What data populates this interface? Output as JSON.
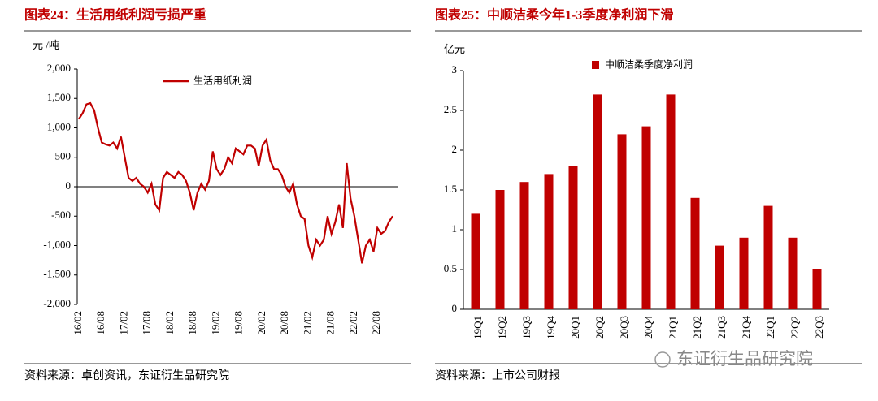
{
  "chart_data": [
    {
      "type": "line",
      "title": "图表24：生活用纸利润亏损严重",
      "y_label": "元 /吨",
      "source": "资料来源：卓创资讯，东证衍生品研究院",
      "categories": [
        "16/02",
        null,
        null,
        null,
        null,
        null,
        "16/08",
        null,
        null,
        null,
        null,
        null,
        "17/02",
        null,
        null,
        null,
        null,
        null,
        "17/08",
        null,
        null,
        null,
        null,
        null,
        "18/02",
        null,
        null,
        null,
        null,
        null,
        "18/08",
        null,
        null,
        null,
        null,
        null,
        "19/02",
        null,
        null,
        null,
        null,
        null,
        "19/08",
        null,
        null,
        null,
        null,
        null,
        "20/02",
        null,
        null,
        null,
        null,
        null,
        "20/08",
        null,
        null,
        null,
        null,
        null,
        "21/02",
        null,
        null,
        null,
        null,
        null,
        "21/08",
        null,
        null,
        null,
        null,
        null,
        "22/02",
        null,
        null,
        null,
        null,
        null,
        "22/08",
        null,
        null,
        null,
        null
      ],
      "series": [
        {
          "name": "生活用纸利润",
          "color": "#c00000",
          "values": [
            1150,
            1250,
            1400,
            1420,
            1300,
            1000,
            750,
            720,
            700,
            750,
            650,
            850,
            500,
            150,
            100,
            150,
            50,
            0,
            -100,
            50,
            -300,
            -400,
            150,
            250,
            200,
            150,
            250,
            200,
            100,
            -100,
            -400,
            -100,
            50,
            -50,
            100,
            600,
            300,
            200,
            300,
            500,
            400,
            650,
            600,
            550,
            700,
            700,
            650,
            350,
            700,
            800,
            450,
            300,
            300,
            200,
            0,
            -100,
            50,
            -300,
            -500,
            -550,
            -1000,
            -1200,
            -900,
            -1000,
            -900,
            -500,
            -800,
            -600,
            -300,
            -700,
            400,
            -200,
            -500,
            -900,
            -1300,
            -1000,
            -900,
            -1100,
            -700,
            -800,
            -750,
            -600,
            -500
          ]
        }
      ],
      "ylim": [
        -2000,
        2000
      ],
      "yticks": [
        {
          "value": -2000,
          "label": "-2,000"
        },
        {
          "value": -1500,
          "label": "-1,500"
        },
        {
          "value": -1000,
          "label": "-1,000"
        },
        -500,
        0,
        500,
        {
          "value": 1000,
          "label": "1,000"
        },
        {
          "value": 1500,
          "label": "1,500"
        },
        {
          "value": 2000,
          "label": "2,000"
        }
      ],
      "legend": "top"
    },
    {
      "type": "bar",
      "title": "图表25：中顺洁柔今年1-3季度净利润下滑",
      "y_label": "亿元",
      "source": "资料来源：上市公司财报",
      "categories": [
        "19Q1",
        "19Q2",
        "19Q3",
        "19Q4",
        "20Q1",
        "20Q2",
        "20Q3",
        "20Q4",
        "21Q1",
        "21Q2",
        "21Q3",
        "21Q4",
        "22Q1",
        "22Q2",
        "22Q3"
      ],
      "series": [
        {
          "name": "中顺洁柔季度净利润",
          "color": "#c00000",
          "values": [
            1.2,
            1.5,
            1.6,
            1.7,
            1.8,
            2.7,
            2.2,
            2.3,
            2.7,
            1.4,
            0.8,
            0.9,
            1.3,
            0.9,
            0.5
          ]
        }
      ],
      "ylim": [
        0,
        3
      ],
      "yticks": [
        0,
        0.5,
        1,
        1.5,
        2,
        2.5,
        3
      ],
      "legend": "top"
    }
  ],
  "watermark": "东证衍生品研究院"
}
